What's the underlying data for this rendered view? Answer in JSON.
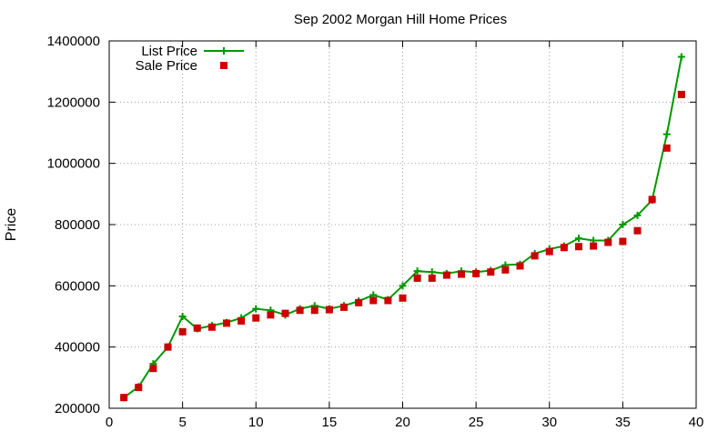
{
  "chart_data": {
    "type": "line",
    "title": "Sep 2002 Morgan Hill Home Prices",
    "xlabel": "",
    "ylabel": "Price",
    "xlim": [
      0,
      40
    ],
    "ylim": [
      200000,
      1400000
    ],
    "x_ticks": [
      0,
      5,
      10,
      15,
      20,
      25,
      30,
      35,
      40
    ],
    "y_ticks": [
      200000,
      400000,
      600000,
      800000,
      1000000,
      1200000,
      1400000
    ],
    "grid": true,
    "legend_position": "top-left",
    "x": [
      1,
      2,
      3,
      4,
      5,
      6,
      7,
      8,
      9,
      10,
      11,
      12,
      13,
      14,
      15,
      16,
      17,
      18,
      19,
      20,
      21,
      22,
      23,
      24,
      25,
      26,
      27,
      28,
      29,
      30,
      31,
      32,
      33,
      34,
      35,
      36,
      37,
      38,
      39
    ],
    "series": [
      {
        "name": "List Price",
        "style": "line-with-plus-markers",
        "color": "#009900",
        "values": [
          235000,
          270000,
          345000,
          400000,
          500000,
          460000,
          470000,
          480000,
          495000,
          525000,
          520000,
          505000,
          525000,
          535000,
          525000,
          535000,
          550000,
          570000,
          555000,
          600000,
          648000,
          645000,
          640000,
          648000,
          645000,
          650000,
          668000,
          670000,
          705000,
          720000,
          730000,
          755000,
          748000,
          748000,
          800000,
          830000,
          880000,
          1095000,
          1348000
        ]
      },
      {
        "name": "Sale Price",
        "style": "square-markers",
        "color": "#cc0000",
        "values": [
          235000,
          268000,
          330000,
          400000,
          450000,
          462000,
          465000,
          478000,
          485000,
          495000,
          505000,
          510000,
          520000,
          520000,
          522000,
          530000,
          545000,
          552000,
          552000,
          560000,
          625000,
          625000,
          635000,
          638000,
          640000,
          645000,
          652000,
          665000,
          698000,
          712000,
          725000,
          728000,
          730000,
          742000,
          745000,
          780000,
          882000,
          1050000,
          1225000
        ]
      }
    ]
  }
}
